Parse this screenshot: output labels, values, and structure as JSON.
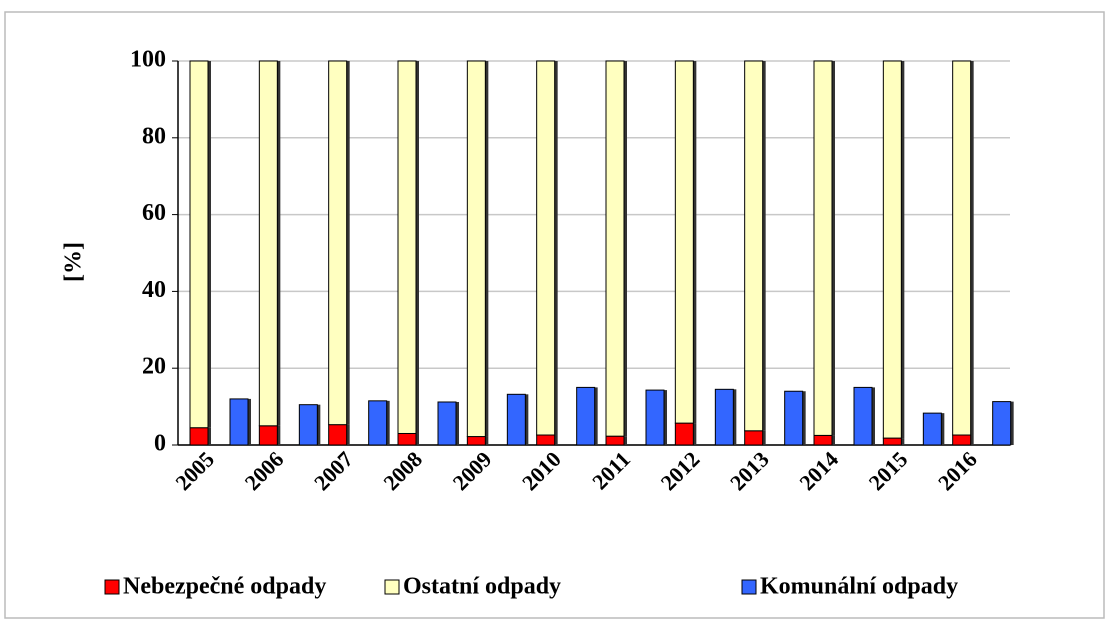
{
  "chart_data": {
    "type": "bar",
    "y_label": "[%]",
    "categories": [
      "2005",
      "2006",
      "2007",
      "2008",
      "2009",
      "2010",
      "2011",
      "2012",
      "2013",
      "2014",
      "2015",
      "2016"
    ],
    "series": [
      {
        "name": "Nebezpečné odpady",
        "color": "#ff0000",
        "stack": 0,
        "values": [
          4.5,
          5,
          5.3,
          3,
          2.2,
          2.6,
          2.3,
          5.7,
          3.7,
          2.5,
          1.8,
          2.6
        ]
      },
      {
        "name": "Ostatní odpady",
        "color": "#ffffc0",
        "stack": 0,
        "values": [
          95.5,
          95,
          94.7,
          97,
          97.8,
          97.4,
          97.7,
          94.3,
          96.3,
          97.5,
          98.2,
          97.4
        ]
      },
      {
        "name": "Komunální odpady",
        "color": "#3366ff",
        "stack": 1,
        "values": [
          12,
          10.5,
          11.5,
          11.2,
          13.2,
          15,
          14.3,
          14.5,
          14,
          15,
          8.3,
          11.3
        ]
      }
    ],
    "ylim": [
      0,
      100
    ],
    "yticks": [
      0,
      20,
      40,
      60,
      80,
      100
    ],
    "grid": true,
    "legend": "bottom"
  }
}
